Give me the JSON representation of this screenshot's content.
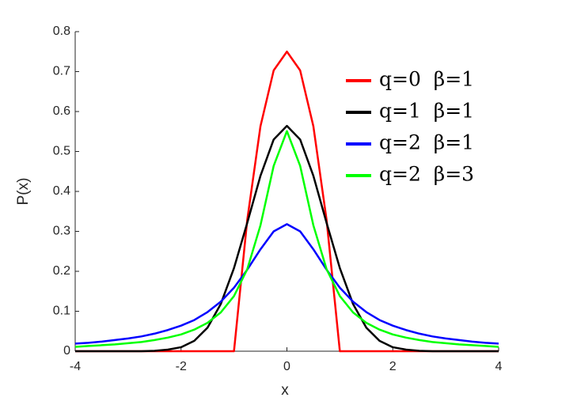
{
  "chart_data": {
    "type": "line",
    "xlabel": "x",
    "ylabel": "P(x)",
    "x": [
      -4,
      -3.75,
      -3.5,
      -3.25,
      -3,
      -2.75,
      -2.5,
      -2.25,
      -2,
      -1.75,
      -1.5,
      -1.25,
      -1,
      -0.75,
      -0.5,
      -0.25,
      0,
      0.25,
      0.5,
      0.75,
      1,
      1.25,
      1.5,
      1.75,
      2,
      2.25,
      2.5,
      2.75,
      3,
      3.25,
      3.5,
      3.75,
      4
    ],
    "series": [
      {
        "name": "q=0  β=1",
        "color": "#ff0000",
        "values": [
          0,
          0,
          0,
          0,
          0,
          0,
          0,
          0,
          0,
          0,
          0,
          0,
          0,
          0.328,
          0.563,
          0.703,
          0.75,
          0.703,
          0.563,
          0.328,
          0,
          0,
          0,
          0,
          0,
          0,
          0,
          0,
          0,
          0,
          0,
          0,
          0
        ]
      },
      {
        "name": "q=1  β=1",
        "color": "#000000",
        "values": [
          0,
          0,
          0,
          0,
          0,
          0,
          0.001,
          0.004,
          0.01,
          0.026,
          0.059,
          0.118,
          0.208,
          0.321,
          0.439,
          0.53,
          0.564,
          0.53,
          0.439,
          0.321,
          0.208,
          0.118,
          0.059,
          0.026,
          0.01,
          0.004,
          0.001,
          0,
          0,
          0,
          0,
          0,
          0
        ]
      },
      {
        "name": "q=2  β=1",
        "color": "#0000ff",
        "values": [
          0.019,
          0.021,
          0.024,
          0.028,
          0.032,
          0.037,
          0.044,
          0.053,
          0.064,
          0.078,
          0.098,
          0.124,
          0.159,
          0.204,
          0.255,
          0.3,
          0.318,
          0.3,
          0.255,
          0.204,
          0.159,
          0.124,
          0.098,
          0.078,
          0.064,
          0.053,
          0.044,
          0.037,
          0.032,
          0.028,
          0.024,
          0.021,
          0.019
        ]
      },
      {
        "name": "q=2  β=3",
        "color": "#00ff00",
        "values": [
          0.011,
          0.013,
          0.015,
          0.017,
          0.02,
          0.023,
          0.028,
          0.034,
          0.042,
          0.054,
          0.071,
          0.097,
          0.138,
          0.205,
          0.315,
          0.464,
          0.551,
          0.464,
          0.315,
          0.205,
          0.138,
          0.097,
          0.071,
          0.054,
          0.042,
          0.034,
          0.028,
          0.023,
          0.02,
          0.017,
          0.015,
          0.013,
          0.011
        ]
      }
    ],
    "xlim": [
      -4,
      4
    ],
    "xticks": [
      -4,
      -2,
      0,
      2,
      4
    ],
    "ylim": [
      0,
      0.8
    ],
    "yticks": [
      0,
      0.1,
      0.2,
      0.3,
      0.4,
      0.5,
      0.6,
      0.7,
      0.8
    ],
    "grid": false,
    "legend": "upper right"
  }
}
